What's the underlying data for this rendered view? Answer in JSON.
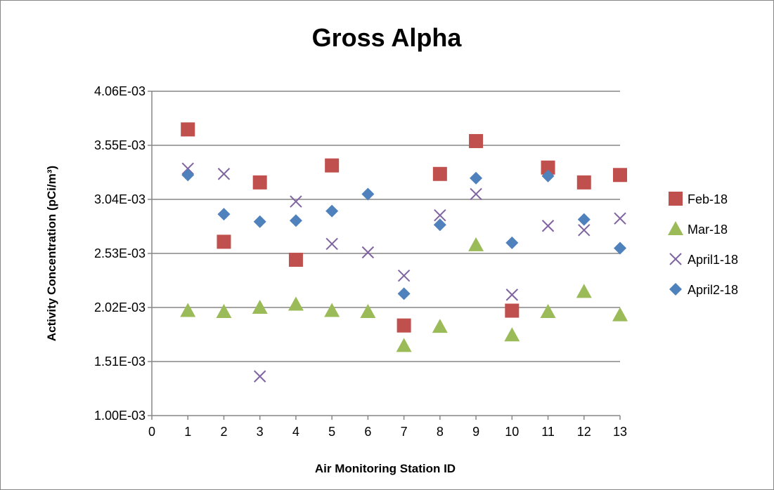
{
  "chart_data": {
    "type": "scatter",
    "title": "Gross Alpha",
    "xlabel": "Air Monitoring Station ID",
    "ylabel": "Activity Concentration (pCi/m³)",
    "xlim": [
      0,
      13
    ],
    "ylim": [
      0.001,
      0.00406
    ],
    "x_ticks": [
      "0",
      "1",
      "2",
      "3",
      "4",
      "5",
      "6",
      "7",
      "8",
      "9",
      "10",
      "11",
      "12",
      "13"
    ],
    "y_ticks": [
      {
        "value": 0.001,
        "label": "1.00E-03"
      },
      {
        "value": 0.00151,
        "label": "1.51E-03"
      },
      {
        "value": 0.00202,
        "label": "2.02E-03"
      },
      {
        "value": 0.00253,
        "label": "2.53E-03"
      },
      {
        "value": 0.00304,
        "label": "3.04E-03"
      },
      {
        "value": 0.00355,
        "label": "3.55E-03"
      },
      {
        "value": 0.00406,
        "label": "4.06E-03"
      }
    ],
    "grid": "horizontal",
    "legend_position": "right",
    "series": [
      {
        "name": "Feb-18",
        "marker": "square",
        "color": "#C0504D",
        "x": [
          1,
          2,
          3,
          4,
          5,
          7,
          8,
          9,
          10,
          11,
          12,
          13
        ],
        "y": [
          0.0037,
          0.00264,
          0.0032,
          0.00247,
          0.00336,
          0.00185,
          0.00328,
          0.00359,
          0.00199,
          0.00334,
          0.0032,
          0.00327
        ]
      },
      {
        "name": "Mar-18",
        "marker": "triangle",
        "color": "#9BBB59",
        "x": [
          1,
          2,
          3,
          4,
          5,
          6,
          7,
          8,
          9,
          10,
          11,
          12,
          13
        ],
        "y": [
          0.00199,
          0.00198,
          0.00202,
          0.00205,
          0.00199,
          0.00198,
          0.00166,
          0.00184,
          0.00261,
          0.00176,
          0.00198,
          0.00217,
          0.00195
        ]
      },
      {
        "name": "April1-18",
        "marker": "x",
        "color": "#8064A2",
        "x": [
          1,
          2,
          3,
          4,
          5,
          6,
          7,
          8,
          9,
          10,
          11,
          12,
          13
        ],
        "y": [
          0.00333,
          0.00328,
          0.00137,
          0.00302,
          0.00262,
          0.00254,
          0.00232,
          0.00289,
          0.00309,
          0.00214,
          0.00279,
          0.00275,
          0.00286
        ]
      },
      {
        "name": "April2-18",
        "marker": "diamond",
        "color": "#4F81BD",
        "x": [
          1,
          2,
          3,
          4,
          5,
          6,
          7,
          8,
          9,
          10,
          11,
          12,
          13
        ],
        "y": [
          0.00327,
          0.0029,
          0.00283,
          0.00284,
          0.00293,
          0.00309,
          0.00215,
          0.0028,
          0.00324,
          0.00263,
          0.00326,
          0.00285,
          0.00258
        ]
      }
    ]
  }
}
